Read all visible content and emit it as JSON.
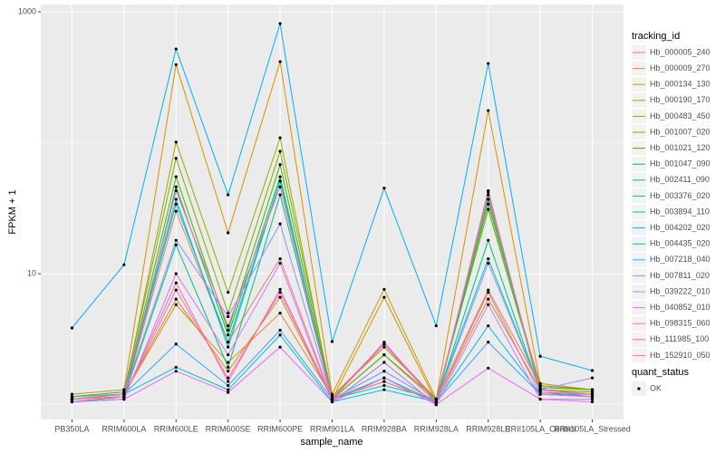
{
  "chart_data": {
    "type": "line",
    "log_y": true,
    "grid": true,
    "x_label": "sample_name",
    "y_label": "FPKM + 1",
    "categories": [
      "PB350LA",
      "RRIM600LA",
      "RRIM600LE",
      "RRIM600SE",
      "RRIM600PE",
      "RRIM901LA",
      "RRIM928BA",
      "RRIM928LA",
      "RRIM928LE",
      "RRII105LA_Control",
      "RRII105LA_Stressed"
    ],
    "ylim": [
      0.77,
      1136
    ],
    "yticks": [
      10,
      1000
    ],
    "legend_title": "tracking_id",
    "legend_position": "right",
    "point_color": "#000000",
    "shape_legend": {
      "title": "quant_status",
      "labels": [
        "OK"
      ]
    },
    "series": [
      {
        "name": "Hb_000005_240",
        "color": "#F8766D",
        "values": [
          1.1,
          1.15,
          30,
          3.0,
          13,
          1.1,
          2.4,
          1.05,
          40,
          1.3,
          1.2
        ]
      },
      {
        "name": "Hb_000009_270",
        "color": "#EA8331",
        "values": [
          1.1,
          1.2,
          5.8,
          2.1,
          5.0,
          1.15,
          2.9,
          1.1,
          7.5,
          1.4,
          1.3
        ]
      },
      {
        "name": "Hb_000134_130",
        "color": "#D89000",
        "values": [
          1.2,
          1.3,
          395,
          20.5,
          416,
          1.2,
          7.6,
          1.1,
          176,
          1.45,
          1.3
        ]
      },
      {
        "name": "Hb_000190_170",
        "color": "#C09B00",
        "values": [
          1.15,
          1.2,
          6.4,
          1.8,
          6.6,
          1.1,
          6.6,
          1.05,
          6.4,
          1.3,
          1.25
        ]
      },
      {
        "name": "Hb_000483_450",
        "color": "#A3A500",
        "values": [
          1.1,
          1.2,
          101,
          7.2,
          109,
          1.1,
          2.9,
          1.05,
          37,
          1.3,
          1.25
        ]
      },
      {
        "name": "Hb_001007_020",
        "color": "#7CAE00",
        "values": [
          1.15,
          1.25,
          76,
          5.0,
          86,
          1.15,
          2.75,
          1.1,
          34,
          1.4,
          1.3
        ]
      },
      {
        "name": "Hb_001021_120",
        "color": "#39B600",
        "values": [
          1.1,
          1.2,
          55,
          3.7,
          68,
          1.1,
          2.4,
          1.1,
          31,
          1.35,
          1.3
        ]
      },
      {
        "name": "Hb_001047_090",
        "color": "#00BB4E",
        "values": [
          1.05,
          1.1,
          46,
          3.4,
          55,
          1.05,
          2.1,
          1.0,
          43,
          1.2,
          1.15
        ]
      },
      {
        "name": "Hb_002411_090",
        "color": "#00BF7D",
        "values": [
          1.05,
          1.15,
          16.6,
          1.93,
          40,
          1.1,
          1.6,
          1.05,
          18,
          1.25,
          1.15
        ]
      },
      {
        "name": "Hb_003376_020",
        "color": "#00C1A3",
        "values": [
          1.1,
          1.2,
          34,
          3.0,
          51,
          1.1,
          1.8,
          1.05,
          37,
          1.3,
          1.2
        ]
      },
      {
        "name": "Hb_003894_110",
        "color": "#00BFC4",
        "values": [
          1.15,
          1.25,
          37,
          2.75,
          51,
          1.1,
          1.4,
          1.1,
          13,
          1.3,
          1.2
        ]
      },
      {
        "name": "Hb_004202_020",
        "color": "#00BAE0",
        "values": [
          1.1,
          1.2,
          1.93,
          1.3,
          3.4,
          1.05,
          1.3,
          1.05,
          4.0,
          1.2,
          1.15
        ]
      },
      {
        "name": "Hb_004435_020",
        "color": "#00B0F6",
        "values": [
          3.85,
          11.7,
          520,
          40,
          813,
          3.03,
          45,
          4.0,
          403,
          2.34,
          1.82
        ]
      },
      {
        "name": "Hb_007218_040",
        "color": "#35A2FF",
        "values": [
          1.1,
          1.2,
          2.9,
          1.4,
          3.7,
          1.1,
          1.5,
          1.05,
          3.0,
          1.2,
          1.2
        ]
      },
      {
        "name": "Hb_007811_020",
        "color": "#9590FF",
        "values": [
          1.1,
          1.2,
          18,
          4.7,
          24,
          1.1,
          1.8,
          1.05,
          12,
          1.3,
          1.6
        ]
      },
      {
        "name": "Hb_039222_010",
        "color": "#C77CFF",
        "values": [
          1.05,
          1.1,
          10,
          2.4,
          12,
          1.05,
          2.1,
          1.0,
          5.8,
          1.1,
          1.1
        ]
      },
      {
        "name": "Hb_040852_010",
        "color": "#E76BF3",
        "values": [
          1.05,
          1.1,
          1.8,
          1.24,
          2.75,
          1.05,
          1.6,
          1.0,
          1.9,
          1.1,
          1.05
        ]
      },
      {
        "name": "Hb_098315_060",
        "color": "#FA62DB",
        "values": [
          1.1,
          1.15,
          7.5,
          1.6,
          7.2,
          1.1,
          3.0,
          1.05,
          7.2,
          1.2,
          1.15
        ]
      },
      {
        "name": "Hb_111985_100",
        "color": "#FF62BC",
        "values": [
          1.1,
          1.2,
          43,
          4.0,
          46,
          1.1,
          2.9,
          1.05,
          40,
          1.3,
          1.2
        ]
      },
      {
        "name": "Hb_152910_050",
        "color": "#FF6C91",
        "values": [
          1.1,
          1.15,
          8.5,
          1.5,
          7.6,
          1.1,
          1.5,
          1.05,
          42,
          1.25,
          1.2
        ]
      }
    ]
  }
}
